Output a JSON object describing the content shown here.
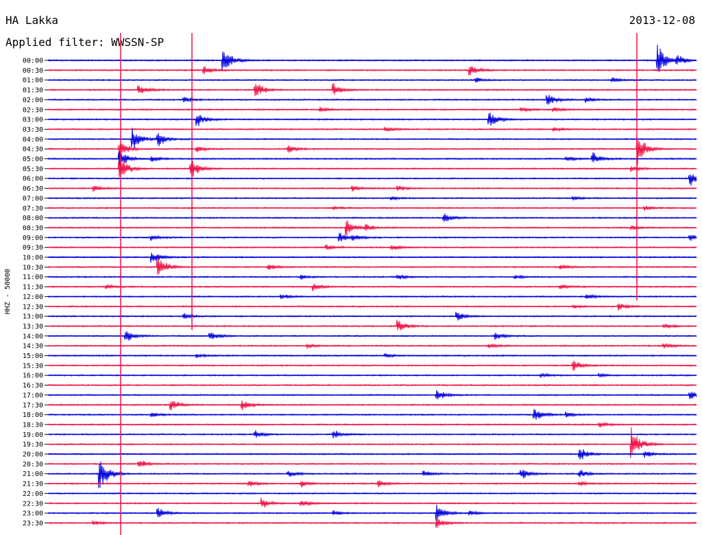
{
  "header": {
    "station": "HA Lakka",
    "date": "2013-12-08",
    "filter_label": "Applied filter: WWSSN-SP"
  },
  "colors": {
    "even": "#0000dd",
    "odd": "#ee1144"
  },
  "chart_data": {
    "type": "line",
    "ylabel": "HHZ - 50000",
    "rows": [
      {
        "label": "00:00",
        "events": [
          [
            0.27,
            22
          ],
          [
            0.94,
            28
          ],
          [
            0.97,
            8
          ]
        ]
      },
      {
        "label": "00:30",
        "events": [
          [
            0.24,
            8
          ],
          [
            0.65,
            10
          ]
        ]
      },
      {
        "label": "01:00",
        "events": [
          [
            0.66,
            4
          ],
          [
            0.87,
            4
          ]
        ]
      },
      {
        "label": "01:30",
        "events": [
          [
            0.14,
            10
          ],
          [
            0.32,
            14
          ],
          [
            0.44,
            10
          ]
        ]
      },
      {
        "label": "02:00",
        "events": [
          [
            0.21,
            5
          ],
          [
            0.77,
            12
          ],
          [
            0.83,
            5
          ]
        ]
      },
      {
        "label": "02:30",
        "events": [
          [
            0.42,
            4
          ],
          [
            0.73,
            4
          ],
          [
            0.78,
            4
          ]
        ]
      },
      {
        "label": "03:00",
        "events": [
          [
            0.23,
            12
          ],
          [
            0.68,
            14
          ]
        ]
      },
      {
        "label": "03:30",
        "events": [
          [
            0.52,
            5
          ],
          [
            0.78,
            4
          ]
        ]
      },
      {
        "label": "04:00",
        "events": [
          [
            0.13,
            20
          ],
          [
            0.17,
            12
          ]
        ]
      },
      {
        "label": "04:30",
        "events": [
          [
            0.11,
            14
          ],
          [
            0.23,
            5
          ],
          [
            0.37,
            8
          ],
          [
            0.91,
            24
          ]
        ]
      },
      {
        "label": "05:00",
        "events": [
          [
            0.11,
            16
          ],
          [
            0.16,
            6
          ],
          [
            0.8,
            4
          ],
          [
            0.84,
            10
          ]
        ]
      },
      {
        "label": "05:30",
        "events": [
          [
            0.11,
            22
          ],
          [
            0.22,
            18
          ],
          [
            0.9,
            5
          ]
        ]
      },
      {
        "label": "06:00",
        "events": [
          [
            0.99,
            12
          ]
        ]
      },
      {
        "label": "06:30",
        "events": [
          [
            0.07,
            5
          ],
          [
            0.47,
            5
          ],
          [
            0.54,
            4
          ]
        ]
      },
      {
        "label": "07:00",
        "events": [
          [
            0.53,
            3
          ],
          [
            0.81,
            3
          ]
        ]
      },
      {
        "label": "07:30",
        "events": [
          [
            0.44,
            3
          ],
          [
            0.92,
            4
          ]
        ]
      },
      {
        "label": "08:00",
        "events": [
          [
            0.61,
            8
          ]
        ]
      },
      {
        "label": "08:30",
        "events": [
          [
            0.46,
            14
          ],
          [
            0.49,
            6
          ],
          [
            0.9,
            4
          ]
        ]
      },
      {
        "label": "09:00",
        "events": [
          [
            0.16,
            5
          ],
          [
            0.45,
            8
          ],
          [
            0.47,
            5
          ],
          [
            0.99,
            6
          ]
        ]
      },
      {
        "label": "09:30",
        "events": [
          [
            0.43,
            4
          ],
          [
            0.53,
            5
          ]
        ]
      },
      {
        "label": "10:00",
        "events": [
          [
            0.16,
            10
          ]
        ]
      },
      {
        "label": "10:30",
        "events": [
          [
            0.17,
            18
          ],
          [
            0.34,
            5
          ],
          [
            0.79,
            5
          ]
        ]
      },
      {
        "label": "11:00",
        "events": [
          [
            0.39,
            4
          ],
          [
            0.54,
            4
          ],
          [
            0.72,
            3
          ]
        ]
      },
      {
        "label": "11:30",
        "events": [
          [
            0.09,
            5
          ],
          [
            0.41,
            6
          ],
          [
            0.79,
            5
          ]
        ]
      },
      {
        "label": "12:00",
        "events": [
          [
            0.36,
            4
          ],
          [
            0.83,
            5
          ]
        ]
      },
      {
        "label": "12:30",
        "events": [
          [
            0.81,
            3
          ],
          [
            0.88,
            6
          ]
        ]
      },
      {
        "label": "13:00",
        "events": [
          [
            0.21,
            5
          ],
          [
            0.63,
            8
          ]
        ]
      },
      {
        "label": "13:30",
        "events": [
          [
            0.54,
            10
          ],
          [
            0.95,
            4
          ]
        ]
      },
      {
        "label": "14:00",
        "events": [
          [
            0.12,
            10
          ],
          [
            0.25,
            8
          ],
          [
            0.69,
            6
          ]
        ]
      },
      {
        "label": "14:30",
        "events": [
          [
            0.4,
            4
          ],
          [
            0.68,
            4
          ],
          [
            0.95,
            5
          ]
        ]
      },
      {
        "label": "15:00",
        "events": [
          [
            0.23,
            3
          ],
          [
            0.52,
            3
          ]
        ]
      },
      {
        "label": "15:30",
        "events": [
          [
            0.81,
            10
          ]
        ]
      },
      {
        "label": "16:00",
        "events": [
          [
            0.76,
            3
          ],
          [
            0.85,
            3
          ]
        ]
      },
      {
        "label": "16:30",
        "events": []
      },
      {
        "label": "17:00",
        "events": [
          [
            0.6,
            10
          ],
          [
            0.99,
            8
          ]
        ]
      },
      {
        "label": "17:30",
        "events": [
          [
            0.19,
            10
          ],
          [
            0.3,
            8
          ]
        ]
      },
      {
        "label": "18:00",
        "events": [
          [
            0.16,
            4
          ],
          [
            0.75,
            12
          ],
          [
            0.8,
            4
          ]
        ]
      },
      {
        "label": "18:30",
        "events": [
          [
            0.85,
            5
          ]
        ]
      },
      {
        "label": "19:00",
        "events": [
          [
            0.32,
            6
          ],
          [
            0.44,
            8
          ]
        ]
      },
      {
        "label": "19:30",
        "events": [
          [
            0.9,
            28
          ]
        ]
      },
      {
        "label": "20:00",
        "events": [
          [
            0.82,
            12
          ],
          [
            0.92,
            6
          ]
        ]
      },
      {
        "label": "20:30",
        "events": [
          [
            0.14,
            8
          ]
        ]
      },
      {
        "label": "21:00",
        "events": [
          [
            0.08,
            30
          ],
          [
            0.37,
            6
          ],
          [
            0.58,
            5
          ],
          [
            0.73,
            10
          ],
          [
            0.82,
            6
          ]
        ]
      },
      {
        "label": "21:30",
        "events": [
          [
            0.31,
            5
          ],
          [
            0.39,
            6
          ],
          [
            0.51,
            5
          ],
          [
            0.82,
            4
          ]
        ]
      },
      {
        "label": "22:00",
        "events": []
      },
      {
        "label": "22:30",
        "events": [
          [
            0.33,
            8
          ],
          [
            0.39,
            6
          ]
        ]
      },
      {
        "label": "23:00",
        "events": [
          [
            0.17,
            8
          ],
          [
            0.44,
            4
          ],
          [
            0.6,
            14
          ],
          [
            0.65,
            4
          ]
        ]
      },
      {
        "label": "23:30",
        "events": [
          [
            0.07,
            4
          ],
          [
            0.6,
            8
          ]
        ]
      }
    ],
    "spikes": [
      {
        "x": 0.112,
        "from": "00:00",
        "to": "23:30",
        "color": "odd"
      },
      {
        "x": 0.222,
        "from": "00:00",
        "to": "13:00",
        "color": "odd"
      },
      {
        "x": 0.908,
        "from": "00:00",
        "to": "11:30",
        "color": "odd"
      }
    ]
  }
}
